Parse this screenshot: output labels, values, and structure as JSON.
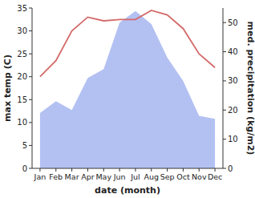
{
  "chart_data": {
    "type": "line",
    "x_label": "date (month)",
    "y_label": "max temp (C)",
    "y2_label": "med. precipitation (kg/m2)",
    "categories": [
      "Jan",
      "Feb",
      "Mar",
      "Apr",
      "May",
      "Jun",
      "Jul",
      "Aug",
      "Sep",
      "Oct",
      "Nov",
      "Dec"
    ],
    "series": [
      {
        "name": "max temp",
        "type": "line",
        "color": "#d46a6a",
        "values": [
          20,
          23.5,
          30,
          33,
          32.2,
          32.5,
          32.5,
          34.5,
          33.5,
          30.5,
          25,
          22
        ]
      },
      {
        "name": "med. precipitation",
        "type": "area",
        "axis": "y2",
        "color": "#b3c1f2",
        "values": [
          19,
          23,
          20,
          31,
          34,
          50,
          54,
          49.5,
          38,
          30,
          18,
          17
        ]
      }
    ],
    "ylim": [
      0,
      35
    ],
    "yticks": [
      0,
      5,
      10,
      15,
      20,
      25,
      30,
      35
    ],
    "y2lim": [
      0,
      55
    ],
    "y2ticks": [
      0,
      10,
      20,
      30,
      40,
      50
    ],
    "grid": false
  }
}
